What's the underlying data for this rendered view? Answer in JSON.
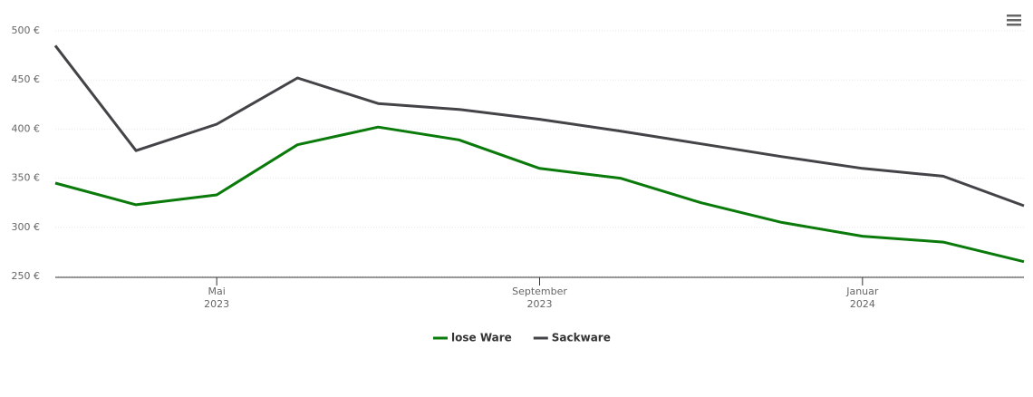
{
  "chart_data": {
    "type": "line",
    "x": [
      "2023-03",
      "2023-04",
      "2023-05",
      "2023-06",
      "2023-07",
      "2023-08",
      "2023-09",
      "2023-10",
      "2023-11",
      "2023-12",
      "2024-01",
      "2024-02",
      "2024-03"
    ],
    "series": [
      {
        "name": "lose Ware",
        "color": "#0a7a0a",
        "values": [
          345,
          323,
          333,
          384,
          402,
          389,
          360,
          350,
          325,
          305,
          291,
          285,
          265
        ]
      },
      {
        "name": "Sackware",
        "color": "#434348",
        "values": [
          485,
          378,
          405,
          452,
          426,
          420,
          410,
          398,
          385,
          372,
          360,
          352,
          322
        ]
      }
    ],
    "xlim": [
      "2023-03",
      "2024-03"
    ],
    "xticks": [
      {
        "value": "2023-05",
        "label": [
          "Mai",
          "2023"
        ]
      },
      {
        "value": "2023-09",
        "label": [
          "September",
          "2023"
        ]
      },
      {
        "value": "2024-01",
        "label": [
          "Januar",
          "2024"
        ]
      }
    ],
    "ylim": [
      250,
      500
    ],
    "yticks": [
      {
        "value": 250,
        "label": "250 €"
      },
      {
        "value": 300,
        "label": "300 €"
      },
      {
        "value": 350,
        "label": "350 €"
      },
      {
        "value": 400,
        "label": "400 €"
      },
      {
        "value": 450,
        "label": "450 €"
      },
      {
        "value": 500,
        "label": "500 €"
      }
    ],
    "grid": true
  }
}
